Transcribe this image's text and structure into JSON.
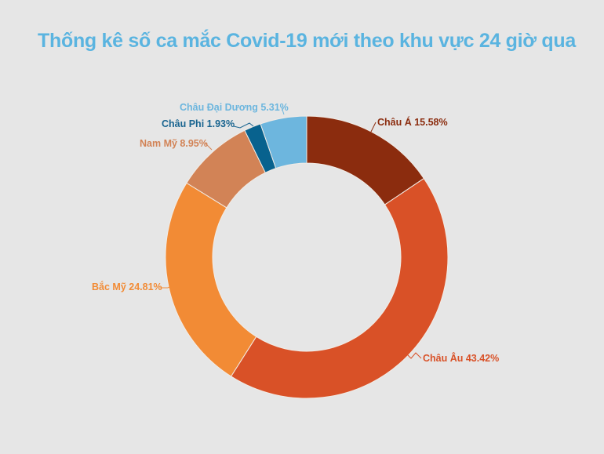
{
  "header": {
    "title": "Thống kê số ca mắc Covid-19 mới theo khu vực 24 giờ qua"
  },
  "chart_data": {
    "type": "pie",
    "variant": "donut",
    "title": "Thống kê số ca mắc Covid-19 mới theo khu vực 24 giờ qua",
    "categories": [
      "Châu Á",
      "Châu Âu",
      "Bắc Mỹ",
      "Nam Mỹ",
      "Châu Phi",
      "Châu Đại Dương"
    ],
    "values": [
      15.58,
      43.42,
      24.81,
      8.95,
      1.93,
      5.31
    ],
    "unit": "%",
    "colors": [
      "#8b2c0e",
      "#d95127",
      "#f28b35",
      "#d28356",
      "#08628e",
      "#6db6de"
    ],
    "label_colors": [
      "#8b2c0e",
      "#d95127",
      "#f28b35",
      "#d28356",
      "#1a6590",
      "#6db6de"
    ],
    "labels": [
      "Châu Á 15.58%",
      "Châu Âu 43.42%",
      "Bắc Mỹ 24.81%",
      "Nam Mỹ 8.95%",
      "Châu Phi  1.93%",
      "Châu Đại Dương 5.31%"
    ],
    "start_angle": "12 o'clock, clockwise",
    "legend": "none (direct labels)"
  },
  "colors": {
    "background": "#e6e6e6",
    "title": "#5ab4e0"
  }
}
